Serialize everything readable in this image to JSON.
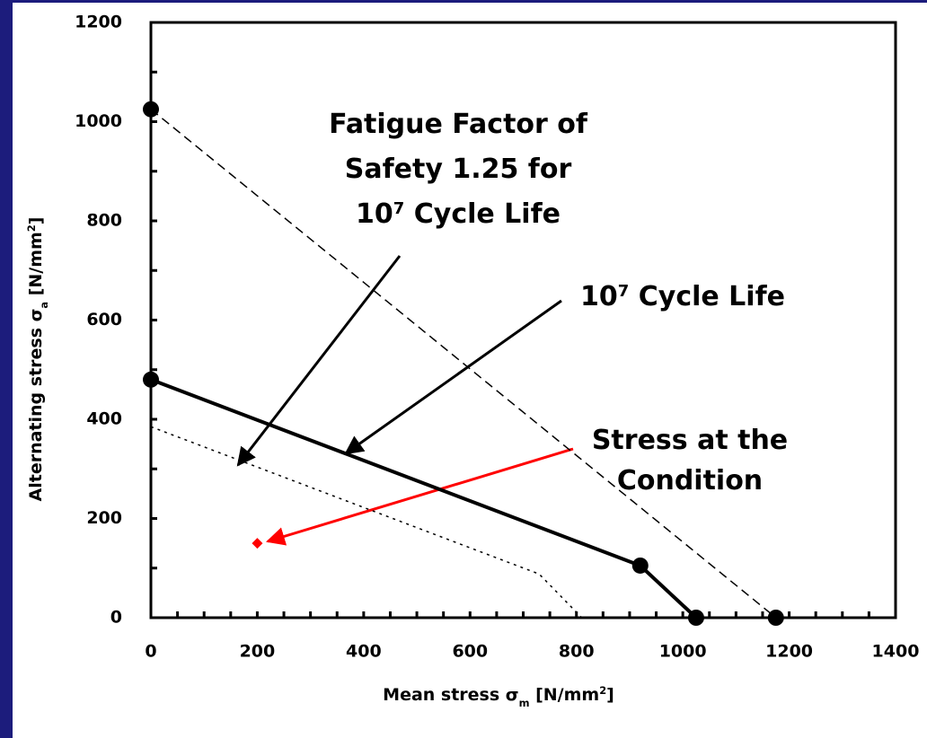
{
  "chart_data": {
    "type": "line",
    "x_label": [
      {
        "text": "Mean stress  σ"
      },
      {
        "text": "m",
        "style": "sub"
      },
      {
        "text": " [N/mm"
      },
      {
        "text": "2",
        "style": "sup"
      },
      {
        "text": "]"
      }
    ],
    "y_label": [
      {
        "text": "Alternating stress σ"
      },
      {
        "text": "a",
        "style": "sub"
      },
      {
        "text": " [N/mm"
      },
      {
        "text": "2",
        "style": "sup"
      },
      {
        "text": "]"
      }
    ],
    "xlim": [
      0,
      1400
    ],
    "xticks": [
      0,
      200,
      400,
      600,
      800,
      1000,
      1200,
      1400
    ],
    "x_minor_ticks": [
      50,
      100,
      150,
      250,
      300,
      350,
      450,
      500,
      550,
      650,
      700,
      750,
      850,
      900,
      950,
      1050,
      1100,
      1150,
      1250,
      1300,
      1350
    ],
    "ylim": [
      0,
      1200
    ],
    "yticks": [
      0,
      200,
      400,
      600,
      800,
      1000,
      1200
    ],
    "y_minor_ticks": [
      100,
      300,
      500,
      700,
      900,
      1100
    ],
    "series": [
      {
        "style": "dashed",
        "color": "#000000",
        "marker": true,
        "x": [
          0,
          1175
        ],
        "values": [
          1025,
          0
        ]
      },
      {
        "style": "solid",
        "color": "#000000",
        "marker": true,
        "x": [
          0,
          920,
          1025
        ],
        "values": [
          480,
          105,
          0
        ]
      },
      {
        "style": "dotted",
        "color": "#000000",
        "marker": false,
        "x": [
          0,
          730,
          810
        ],
        "values": [
          385,
          88,
          0
        ]
      },
      {
        "style": "point",
        "color": "#ff0000",
        "marker": true,
        "x": [
          200
        ],
        "values": [
          150
        ]
      }
    ],
    "annotations": [
      {
        "color": "#000000",
        "lines": [
          [
            {
              "text": "Fatigue Factor of"
            }
          ],
          [
            {
              "text": "Safety 1.25 for"
            }
          ],
          [
            {
              "text": "10"
            },
            {
              "text": "7",
              "style": "sup"
            },
            {
              "text": " Cycle Life"
            }
          ]
        ]
      },
      {
        "color": "#000000",
        "lines": [
          [
            {
              "text": "10"
            },
            {
              "text": "7",
              "style": "sup"
            },
            {
              "text": " Cycle Life"
            }
          ]
        ]
      },
      {
        "color": "#000000",
        "lines": [
          [
            {
              "text": "Stress at the"
            }
          ],
          [
            {
              "text": "Condition"
            }
          ]
        ]
      }
    ]
  }
}
